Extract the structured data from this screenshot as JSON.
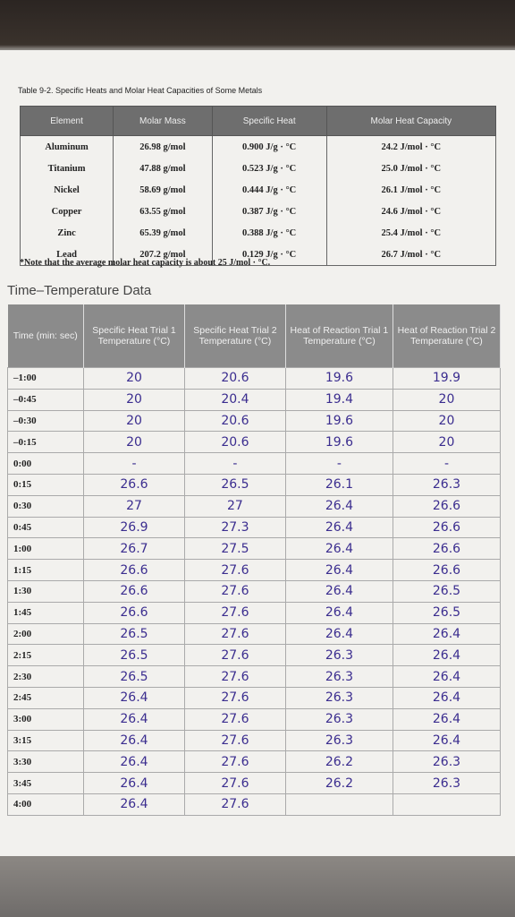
{
  "table1": {
    "title": "Table 9-2. Specific Heats and Molar Heat Capacities of Some Metals",
    "headers": [
      "Element",
      "Molar Mass",
      "Specific Heat",
      "Molar Heat Capacity"
    ],
    "rows": [
      [
        "Aluminum",
        "26.98 g/mol",
        "0.900 J/g · °C",
        "24.2 J/mol · °C"
      ],
      [
        "Titanium",
        "47.88 g/mol",
        "0.523 J/g · °C",
        "25.0 J/mol · °C"
      ],
      [
        "Nickel",
        "58.69 g/mol",
        "0.444 J/g · °C",
        "26.1 J/mol · °C"
      ],
      [
        "Copper",
        "63.55 g/mol",
        "0.387 J/g · °C",
        "24.6 J/mol · °C"
      ],
      [
        "Zinc",
        "65.39 g/mol",
        "0.388 J/g · °C",
        "25.4 J/mol · °C"
      ],
      [
        "Lead",
        "207.2 g/mol",
        "0.129 J/g · °C",
        "26.7 J/mol · °C"
      ]
    ],
    "note": "*Note that the average molar heat capacity is about 25 J/mol · °C."
  },
  "table2": {
    "title": "Time–Temperature Data",
    "headers": [
      "Time (min: sec)",
      "Specific Heat Trial 1 Temperature (°C)",
      "Specific Heat Trial 2 Temperature (°C)",
      "Heat of Reaction Trial 1 Temperature (°C)",
      "Heat of Reaction Trial 2 Temperature (°C)"
    ],
    "rows": [
      [
        "–1:00",
        "20",
        "20.6",
        "19.6",
        "19.9"
      ],
      [
        "–0:45",
        "20",
        "20.4",
        "19.4",
        "20"
      ],
      [
        "–0:30",
        "20",
        "20.6",
        "19.6",
        "20"
      ],
      [
        "–0:15",
        "20",
        "20.6",
        "19.6",
        "20"
      ],
      [
        "0:00",
        "-",
        "-",
        "-",
        "-"
      ],
      [
        "0:15",
        "26.6",
        "26.5",
        "26.1",
        "26.3"
      ],
      [
        "0:30",
        "27",
        "27",
        "26.4",
        "26.6"
      ],
      [
        "0:45",
        "26.9",
        "27.3",
        "26.4",
        "26.6"
      ],
      [
        "1:00",
        "26.7",
        "27.5",
        "26.4",
        "26.6"
      ],
      [
        "1:15",
        "26.6",
        "27.6",
        "26.4",
        "26.6"
      ],
      [
        "1:30",
        "26.6",
        "27.6",
        "26.4",
        "26.5"
      ],
      [
        "1:45",
        "26.6",
        "27.6",
        "26.4",
        "26.5"
      ],
      [
        "2:00",
        "26.5",
        "27.6",
        "26.4",
        "26.4"
      ],
      [
        "2:15",
        "26.5",
        "27.6",
        "26.3",
        "26.4"
      ],
      [
        "2:30",
        "26.5",
        "27.6",
        "26.3",
        "26.4"
      ],
      [
        "2:45",
        "26.4",
        "27.6",
        "26.3",
        "26.4"
      ],
      [
        "3:00",
        "26.4",
        "27.6",
        "26.3",
        "26.4"
      ],
      [
        "3:15",
        "26.4",
        "27.6",
        "26.3",
        "26.4"
      ],
      [
        "3:30",
        "26.4",
        "27.6",
        "26.2",
        "26.3"
      ],
      [
        "3:45",
        "26.4",
        "27.6",
        "26.2",
        "26.3"
      ],
      [
        "4:00",
        "26.4",
        "27.6"
      ]
    ]
  }
}
